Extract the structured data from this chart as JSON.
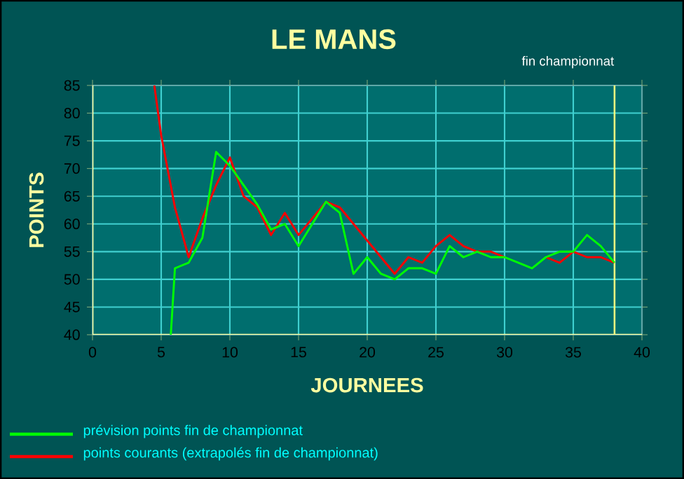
{
  "chart_data": {
    "type": "line",
    "title": "LE MANS",
    "xlabel": "JOURNEES",
    "ylabel": "POINTS",
    "xlim": [
      0,
      40
    ],
    "xticks": [
      0,
      5,
      10,
      15,
      20,
      25,
      30,
      35,
      40
    ],
    "ylim": [
      40,
      85
    ],
    "yticks": [
      40,
      45,
      50,
      55,
      60,
      65,
      70,
      75,
      80,
      85
    ],
    "grid": true,
    "legend": "bottom left",
    "line_style": "solid",
    "ref_lines": [
      {
        "axis": "x",
        "value": 38,
        "label": "fin championnat",
        "color": "#ffff80"
      }
    ],
    "series": [
      {
        "name": "prévision points fin de championnat",
        "color": "#00ff00",
        "x": [
          5.7,
          6,
          7,
          8,
          9,
          10,
          11,
          12,
          13,
          14,
          15,
          16,
          17,
          18,
          19,
          20,
          21,
          22,
          23,
          24,
          25,
          26,
          27,
          28,
          29,
          30,
          31,
          32,
          33,
          34,
          35,
          36,
          37,
          38
        ],
        "values": [
          40,
          52,
          53,
          57.5,
          73,
          70.5,
          67,
          63.5,
          59,
          60,
          56,
          60,
          64,
          62,
          51,
          54,
          51,
          50,
          52,
          52,
          51,
          56,
          54,
          55,
          54,
          54,
          53,
          52,
          54,
          55,
          55,
          58,
          56,
          53
        ]
      },
      {
        "name": "points courants (extrapolés fin de championnat)",
        "color": "#ff0000",
        "x": [
          4.5,
          5,
          6,
          7,
          8,
          9,
          10,
          11,
          12,
          13,
          14,
          15,
          16,
          17,
          18,
          19,
          20,
          21,
          22,
          23,
          24,
          25,
          26,
          27,
          28,
          29,
          30,
          31,
          32,
          33,
          34,
          35,
          36,
          37,
          38
        ],
        "values": [
          85,
          76,
          63,
          54,
          61,
          67,
          72,
          65,
          63,
          58,
          62,
          58,
          61,
          64,
          63,
          60,
          57,
          54,
          51,
          54,
          53,
          56,
          58,
          56,
          55,
          55,
          54,
          null,
          null,
          54,
          53,
          55,
          54,
          54,
          53
        ]
      }
    ]
  }
}
